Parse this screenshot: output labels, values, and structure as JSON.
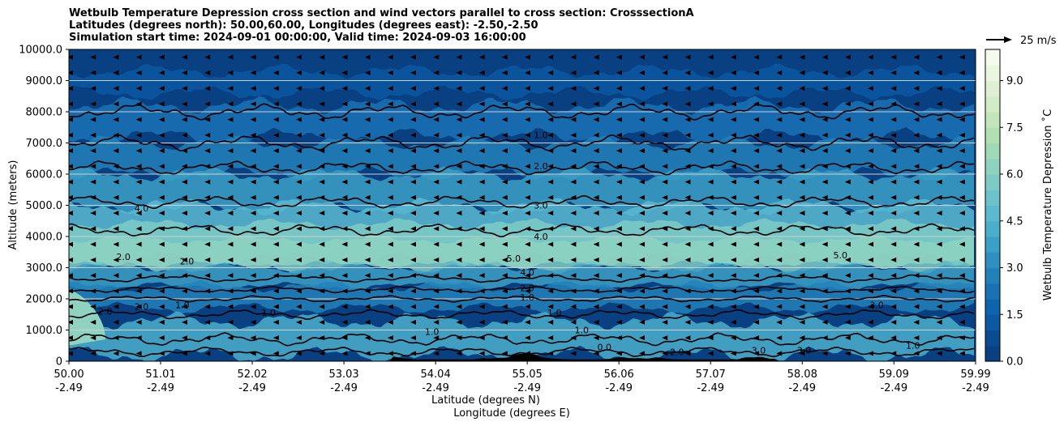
{
  "chart_data": {
    "type": "heatmap",
    "title_lines": [
      "Wetbulb Temperature Depression cross section and wind vectors parallel to cross section: CrosssectionA",
      "Latitudes (degrees north): 50.00,60.00, Longitudes (degrees east): -2.50,-2.50",
      "Simulation start time: 2024-09-01 00:00:00, Valid time: 2024-09-03 16:00:00"
    ],
    "ylabel": "Altitude (meters)",
    "xlabel_lat": "Latitude (degrees N)",
    "xlabel_lon": "Longitude (degrees E)",
    "ylim": [
      0,
      10000
    ],
    "y_ticks": [
      "0",
      "1000.0",
      "2000.0",
      "3000.0",
      "4000.0",
      "5000.0",
      "6000.0",
      "7000.0",
      "8000.0",
      "9000.0",
      "10000.0"
    ],
    "x_ticks_lat": [
      "50.00",
      "51.01",
      "52.02",
      "53.03",
      "54.04",
      "55.05",
      "56.06",
      "57.07",
      "58.08",
      "59.09",
      "59.99"
    ],
    "x_ticks_lon": [
      "-2.49",
      "-2.49",
      "-2.49",
      "-2.49",
      "-2.49",
      "-2.49",
      "-2.49",
      "-2.49",
      "-2.49",
      "-2.49",
      "-2.49"
    ],
    "grid": "horizontal",
    "colorbar": {
      "label": "Wetbulb Temperature Depression ˚C",
      "range": [
        0,
        10
      ],
      "ticks": [
        "0.0",
        "1.5",
        "3.0",
        "4.5",
        "6.0",
        "7.5",
        "9.0"
      ],
      "colors": [
        "#084081",
        "#0a4c92",
        "#0b58a3",
        "#0d64ad",
        "#1a72b5",
        "#2381ba",
        "#2e90c0",
        "#3ba0c6",
        "#4bafcc",
        "#5bbad0",
        "#6cc3cd",
        "#7ecbc6",
        "#8fd2bf",
        "#a0d9b8",
        "#b1dfb4",
        "#c2e6b9",
        "#d1ecc6",
        "#deefd3",
        "#eaf6e0",
        "#f4fbee"
      ]
    },
    "wind_key": "25 m/s",
    "contour_labels": [
      {
        "text": "1.0",
        "lat": 55.2,
        "alt": 7150
      },
      {
        "text": "2.0",
        "lat": 55.2,
        "alt": 6150
      },
      {
        "text": "3.0",
        "lat": 55.2,
        "alt": 4900
      },
      {
        "text": "4.0",
        "lat": 55.2,
        "alt": 3900
      },
      {
        "text": "5.0",
        "lat": 54.9,
        "alt": 3200
      },
      {
        "text": "4.0",
        "lat": 55.05,
        "alt": 2750
      },
      {
        "text": "2.0",
        "lat": 55.05,
        "alt": 2250
      },
      {
        "text": "1.0",
        "lat": 55.05,
        "alt": 1950
      },
      {
        "text": "4.0",
        "lat": 50.8,
        "alt": 4800
      },
      {
        "text": "2.0",
        "lat": 50.6,
        "alt": 3250
      },
      {
        "text": "2.0",
        "lat": 51.3,
        "alt": 3100
      },
      {
        "text": "2.0",
        "lat": 50.4,
        "alt": 1500
      },
      {
        "text": "2.0",
        "lat": 50.8,
        "alt": 1650
      },
      {
        "text": "1.0",
        "lat": 51.25,
        "alt": 1700
      },
      {
        "text": "1.0",
        "lat": 52.2,
        "alt": 1450
      },
      {
        "text": "1.0",
        "lat": 55.35,
        "alt": 1450
      },
      {
        "text": "1.0",
        "lat": 54.0,
        "alt": 850
      },
      {
        "text": "1.0",
        "lat": 55.65,
        "alt": 900
      },
      {
        "text": "5.0",
        "lat": 58.5,
        "alt": 3300
      },
      {
        "text": "3.0",
        "lat": 58.9,
        "alt": 1700
      },
      {
        "text": "3.0",
        "lat": 57.6,
        "alt": 250
      },
      {
        "text": "2.0",
        "lat": 56.7,
        "alt": 200
      },
      {
        "text": "3.0",
        "lat": 58.1,
        "alt": 250
      },
      {
        "text": "1.0",
        "lat": 59.3,
        "alt": 400
      },
      {
        "text": "0.0",
        "lat": 55.9,
        "alt": 350
      }
    ]
  }
}
